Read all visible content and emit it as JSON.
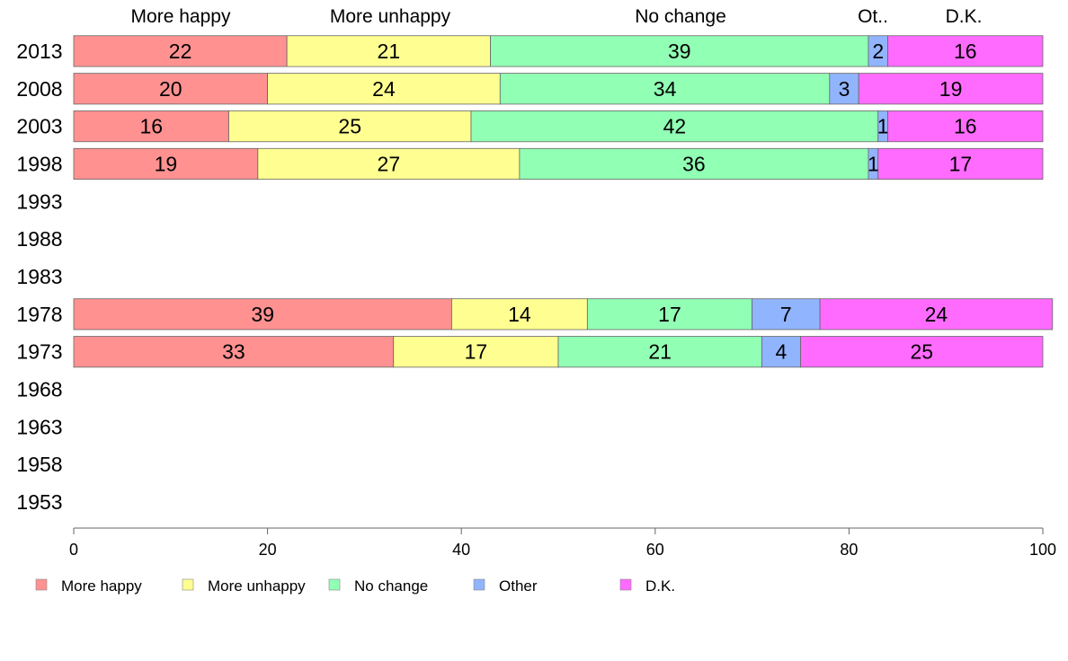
{
  "chart_data": {
    "type": "bar",
    "orientation": "horizontal",
    "stacked": true,
    "categories": [
      "2013",
      "2008",
      "2003",
      "1998",
      "1993",
      "1988",
      "1983",
      "1978",
      "1973",
      "1968",
      "1963",
      "1958",
      "1953"
    ],
    "series": [
      {
        "name": "More happy",
        "color": "#ff9191",
        "values": [
          22,
          20,
          16,
          19,
          null,
          null,
          null,
          39,
          33,
          null,
          null,
          null,
          null
        ]
      },
      {
        "name": "More unhappy",
        "color": "#ffff91",
        "values": [
          21,
          24,
          25,
          27,
          null,
          null,
          null,
          14,
          17,
          null,
          null,
          null,
          null
        ]
      },
      {
        "name": "No change",
        "color": "#91ffb4",
        "values": [
          39,
          34,
          42,
          36,
          null,
          null,
          null,
          17,
          21,
          null,
          null,
          null,
          null
        ]
      },
      {
        "name": "Other",
        "color": "#91b4ff",
        "values": [
          2,
          3,
          1,
          1,
          null,
          null,
          null,
          7,
          4,
          null,
          null,
          null,
          null
        ]
      },
      {
        "name": "D.K.",
        "color": "#ff6bff",
        "values": [
          16,
          19,
          16,
          17,
          null,
          null,
          null,
          24,
          25,
          null,
          null,
          null,
          null
        ]
      }
    ],
    "top_labels": [
      "More happy",
      "More unhappy",
      "No change",
      "Ot..",
      "D.K."
    ],
    "xlim": [
      0,
      100
    ],
    "xticks": [
      0,
      20,
      40,
      60,
      80,
      100
    ],
    "grid": false,
    "legend_position": "bottom"
  }
}
